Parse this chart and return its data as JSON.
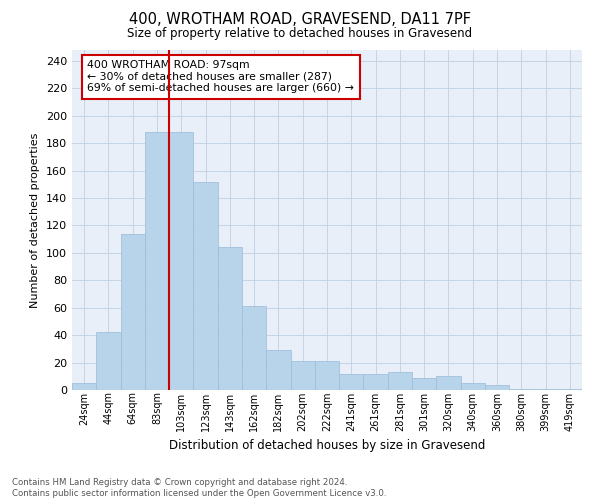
{
  "title": "400, WROTHAM ROAD, GRAVESEND, DA11 7PF",
  "subtitle": "Size of property relative to detached houses in Gravesend",
  "xlabel": "Distribution of detached houses by size in Gravesend",
  "ylabel": "Number of detached properties",
  "categories": [
    "24sqm",
    "44sqm",
    "64sqm",
    "83sqm",
    "103sqm",
    "123sqm",
    "143sqm",
    "162sqm",
    "182sqm",
    "202sqm",
    "222sqm",
    "241sqm",
    "261sqm",
    "281sqm",
    "301sqm",
    "320sqm",
    "340sqm",
    "360sqm",
    "380sqm",
    "399sqm",
    "419sqm"
  ],
  "values": [
    5,
    42,
    114,
    188,
    188,
    152,
    104,
    61,
    29,
    21,
    21,
    12,
    12,
    13,
    9,
    10,
    5,
    4,
    1,
    1,
    1
  ],
  "bar_color": "#b8d4ea",
  "bar_edge_color": "#9bbbd8",
  "vline_x_index": 4,
  "vline_color": "#cc0000",
  "ylim": [
    0,
    248
  ],
  "yticks": [
    0,
    20,
    40,
    60,
    80,
    100,
    120,
    140,
    160,
    180,
    200,
    220,
    240
  ],
  "annotation_title": "400 WROTHAM ROAD: 97sqm",
  "annotation_line1": "← 30% of detached houses are smaller (287)",
  "annotation_line2": "69% of semi-detached houses are larger (660) →",
  "annotation_box_color": "#cc0000",
  "footer_line1": "Contains HM Land Registry data © Crown copyright and database right 2024.",
  "footer_line2": "Contains public sector information licensed under the Open Government Licence v3.0.",
  "background_color": "#ffffff",
  "plot_bg_color": "#e8eff8",
  "grid_color": "#c5d5e5"
}
